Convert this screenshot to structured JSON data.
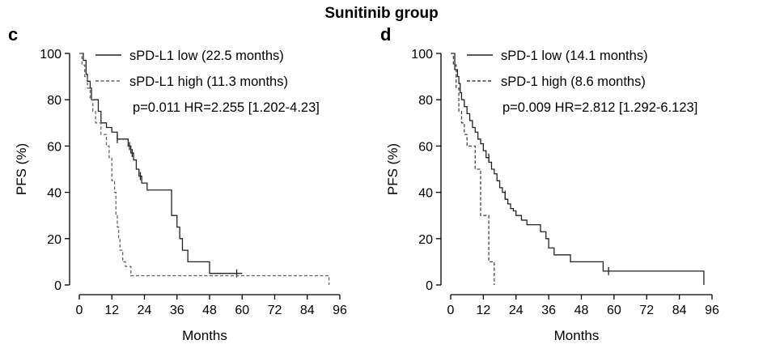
{
  "figure_title": "Sunitinib group",
  "chart_data": [
    {
      "type": "line",
      "panel": "c",
      "xlabel": "Months",
      "ylabel": "PFS (%)",
      "xlim": [
        0,
        96
      ],
      "ylim": [
        0,
        100
      ],
      "xticks": [
        "0",
        "12",
        "24",
        "36",
        "48",
        "60",
        "72",
        "84",
        "96"
      ],
      "yticks": [
        "0",
        "20",
        "40",
        "60",
        "80",
        "100"
      ],
      "legend_position": "top-right",
      "annotation": "p=0.011 HR=2.255 [1.202-4.23]",
      "series": [
        {
          "name": "sPD-L1 low (22.5 months)",
          "style": "solid",
          "color": "#222222",
          "x": [
            0,
            1.5,
            2.5,
            3,
            4,
            4.5,
            7,
            8,
            10,
            12,
            14,
            17,
            18,
            19,
            20,
            21,
            22,
            23,
            25,
            29,
            32,
            34,
            36,
            37,
            38,
            40,
            44,
            46,
            48,
            52,
            54,
            57,
            58,
            60
          ],
          "y": [
            100,
            97,
            91,
            88,
            85,
            80,
            75,
            70,
            68,
            66,
            63,
            63,
            60,
            57,
            54,
            50,
            47,
            44,
            41,
            41,
            41,
            30,
            25,
            20,
            15,
            10,
            10,
            10,
            5,
            5,
            5,
            5,
            5,
            5
          ],
          "censor_x": [
            14,
            18.5,
            19.5,
            22.5,
            58
          ],
          "censor_y": [
            63,
            60,
            57,
            47,
            5
          ]
        },
        {
          "name": "sPD-L1 high (11.3 months)",
          "style": "dashed",
          "color": "#666666",
          "x": [
            0,
            1,
            2,
            3,
            4,
            5,
            6,
            8,
            10,
            11,
            12,
            13,
            13.5,
            14,
            14.5,
            15,
            16,
            17,
            18,
            19,
            60,
            92
          ],
          "y": [
            100,
            95,
            90,
            85,
            80,
            75,
            70,
            65,
            60,
            55,
            45,
            40,
            30,
            25,
            20,
            15,
            10,
            8,
            8,
            4,
            4,
            0
          ]
        }
      ]
    },
    {
      "type": "line",
      "panel": "d",
      "xlabel": "Months",
      "ylabel": "PFS (%)",
      "xlim": [
        0,
        96
      ],
      "ylim": [
        0,
        100
      ],
      "xticks": [
        "0",
        "12",
        "24",
        "36",
        "48",
        "60",
        "72",
        "84",
        "96"
      ],
      "yticks": [
        "0",
        "20",
        "40",
        "60",
        "80",
        "100"
      ],
      "legend_position": "top-right",
      "annotation": "p=0.009 HR=2.812 [1.292-6.123]",
      "series": [
        {
          "name": "sPD-1 low (14.1 months)",
          "style": "solid",
          "color": "#222222",
          "x": [
            0,
            1.5,
            2.5,
            3,
            3.5,
            4,
            5,
            6,
            7,
            8,
            9,
            10,
            11,
            12,
            13,
            14,
            15,
            16,
            17,
            18,
            19,
            20,
            21,
            22,
            23,
            24,
            26,
            28,
            30,
            33,
            35,
            36,
            38,
            40,
            44,
            48,
            52,
            56,
            60,
            93
          ],
          "y": [
            100,
            93,
            90,
            87,
            83,
            80,
            77,
            74,
            71,
            68,
            66,
            63,
            61,
            58,
            55,
            53,
            50,
            48,
            45,
            42,
            40,
            37,
            35,
            33,
            32,
            30,
            28,
            26,
            26,
            23,
            20,
            16,
            13,
            13,
            10,
            10,
            10,
            6,
            6,
            0
          ],
          "censor_x": [
            14,
            20,
            58
          ],
          "censor_y": [
            55,
            39,
            6
          ]
        },
        {
          "name": "sPD-1 high (8.6 months)",
          "style": "dashed",
          "color": "#444444",
          "x": [
            0,
            1,
            2,
            3,
            4,
            5,
            6,
            7,
            8,
            9,
            10,
            11,
            12,
            13,
            14,
            15,
            16
          ],
          "y": [
            100,
            95,
            85,
            75,
            70,
            65,
            60,
            60,
            60,
            50,
            50,
            30,
            30,
            30,
            10,
            10,
            0
          ]
        }
      ]
    }
  ]
}
